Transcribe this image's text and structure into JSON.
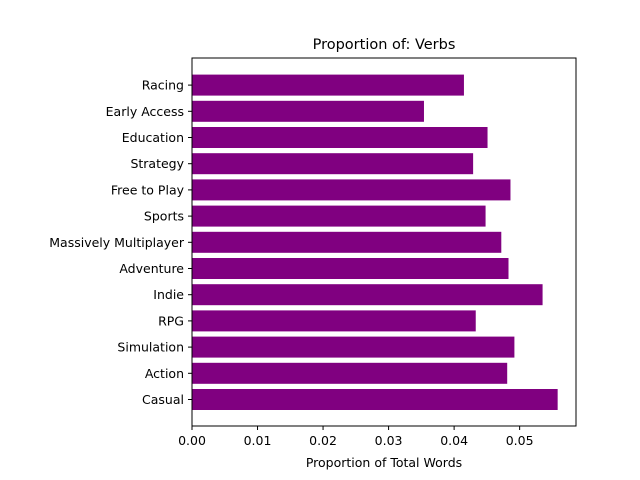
{
  "chart_data": {
    "type": "bar",
    "orientation": "horizontal",
    "title": "Proportion of: Verbs",
    "xlabel": "Proportion of Total Words",
    "ylabel": "",
    "xlim": [
      0.0,
      0.0586
    ],
    "xticks": [
      0.0,
      0.01,
      0.02,
      0.03,
      0.04,
      0.05
    ],
    "xtick_labels": [
      "0.00",
      "0.01",
      "0.02",
      "0.03",
      "0.04",
      "0.05"
    ],
    "grid": false,
    "bar_color": "#800080",
    "categories": [
      "Casual",
      "Action",
      "Simulation",
      "RPG",
      "Indie",
      "Adventure",
      "Massively Multiplayer",
      "Sports",
      "Free to Play",
      "Strategy",
      "Education",
      "Early Access",
      "Racing"
    ],
    "values": [
      0.0558,
      0.0481,
      0.0492,
      0.0433,
      0.0535,
      0.0483,
      0.0472,
      0.0448,
      0.0486,
      0.0429,
      0.0451,
      0.0354,
      0.0415
    ]
  }
}
